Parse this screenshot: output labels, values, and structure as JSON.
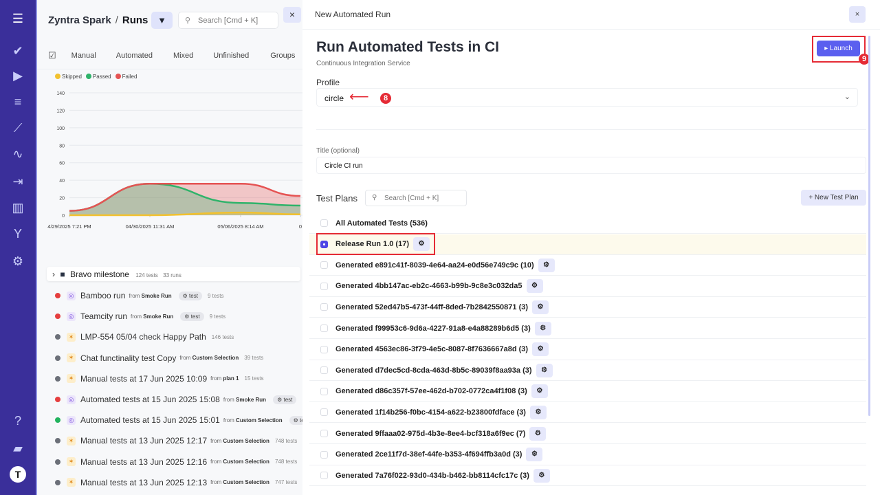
{
  "sidebar": {
    "items": [
      {
        "icon": "menu-icon",
        "glyph": "☰"
      },
      {
        "icon": "check-icon",
        "glyph": "✔"
      },
      {
        "icon": "play-circle-icon",
        "glyph": "▶"
      },
      {
        "icon": "list-check-icon",
        "glyph": "≡"
      },
      {
        "icon": "steps-icon",
        "glyph": "⟋"
      },
      {
        "icon": "pulse-icon",
        "glyph": "∿"
      },
      {
        "icon": "import-icon",
        "glyph": "⇥"
      },
      {
        "icon": "bar-chart-icon",
        "glyph": "▥"
      },
      {
        "icon": "branch-icon",
        "glyph": "Y"
      },
      {
        "icon": "gear-icon",
        "glyph": "⚙"
      }
    ],
    "bottom": [
      {
        "icon": "help-icon",
        "glyph": "?"
      },
      {
        "icon": "folder-icon",
        "glyph": "▰"
      },
      {
        "icon": "avatar-icon",
        "glyph": "T"
      }
    ]
  },
  "left": {
    "project": "Zyntra Spark",
    "separator": "/",
    "page": "Runs",
    "search_placeholder": "Search [Cmd + K]",
    "tabs": [
      "Manual",
      "Automated",
      "Mixed",
      "Unfinished",
      "Groups"
    ],
    "milestone": {
      "name": "Bravo milestone",
      "tests": "124 tests",
      "runs": "33 runs"
    },
    "runs": [
      {
        "name": "Bamboo run",
        "from": "from",
        "source": "Smoke Run",
        "tag": "test",
        "count": "9 tests",
        "status": "#e53e3e",
        "kind": "auto"
      },
      {
        "name": "Teamcity run",
        "from": "from",
        "source": "Smoke Run",
        "tag": "test",
        "count": "9 tests",
        "status": "#e53e3e",
        "kind": "auto"
      },
      {
        "name": "LMP-554 05/04 check Happy Path",
        "count": "146 tests",
        "status": "#6b6f78",
        "kind": "manual"
      },
      {
        "name": "Chat functinality test Copy",
        "from": "from",
        "source": "Custom Selection",
        "count": "39 tests",
        "status": "#6b6f78",
        "kind": "manual"
      },
      {
        "name": "Manual tests at 17 Jun 2025 10:09",
        "from": "from",
        "source": "plan 1",
        "count": "15 tests",
        "status": "#6b6f78",
        "kind": "manual"
      },
      {
        "name": "Automated tests at 15 Jun 2025 15:08",
        "from": "from",
        "source": "Smoke Run",
        "tag": "test",
        "status": "#e53e3e",
        "kind": "auto"
      },
      {
        "name": "Automated tests at 15 Jun 2025 15:01",
        "from": "from",
        "source": "Custom Selection",
        "tag": "te",
        "status": "#22b35e",
        "kind": "auto"
      },
      {
        "name": "Manual tests at 13 Jun 2025 12:17",
        "from": "from",
        "source": "Custom Selection",
        "count": "748 tests",
        "status": "#6b6f78",
        "kind": "manual"
      },
      {
        "name": "Manual tests at 13 Jun 2025 12:16",
        "from": "from",
        "source": "Custom Selection",
        "count": "748 tests",
        "status": "#6b6f78",
        "kind": "manual"
      },
      {
        "name": "Manual tests at 13 Jun 2025 12:13",
        "from": "from",
        "source": "Custom Selection",
        "count": "747 tests",
        "status": "#6b6f78",
        "kind": "manual"
      }
    ]
  },
  "chart_data": {
    "type": "area",
    "stacked": true,
    "grid": true,
    "legend": "top-left",
    "x": [
      "4/29/2025 7:21 PM",
      "04/30/2025 11:31 AM",
      "05/06/2025 8:14 AM",
      "0"
    ],
    "ylim": [
      0,
      140
    ],
    "yticks": [
      0,
      20,
      40,
      60,
      80,
      100,
      120,
      140
    ],
    "series": [
      {
        "name": "Skipped",
        "color": "#f2c12e",
        "values": [
          0,
          0,
          3,
          1
        ]
      },
      {
        "name": "Passed",
        "color": "#2fb36a",
        "values": [
          5,
          36,
          11,
          10
        ]
      },
      {
        "name": "Failed",
        "color": "#e55353",
        "values": [
          0,
          0,
          22,
          11
        ]
      }
    ]
  },
  "modal": {
    "header": "New Automated Run",
    "close": "×",
    "title": "Run Automated Tests in CI",
    "subtitle": "Continuous Integration Service",
    "launch": "Launch",
    "launch_icon": "▸",
    "profile_label": "Profile",
    "profile_value": "circle",
    "title_label": "Title (optional)",
    "title_value": "Circle CI run",
    "plans_label": "Test Plans",
    "plans_search_placeholder": "Search [Cmd + K]",
    "new_plan": "+ New Test Plan",
    "annotations": {
      "profile": "8",
      "launch": "9"
    },
    "accent": "#5b5fef",
    "plans": [
      {
        "label": "All Automated Tests (536)",
        "checked": false,
        "gear": false
      },
      {
        "label": "Release Run 1.0 (17)",
        "checked": true,
        "gear": true
      },
      {
        "label": "Generated e891c41f-8039-4e64-aa24-e0d56e749c9c (10)",
        "checked": false,
        "gear": true
      },
      {
        "label": "Generated 4bb147ac-eb2c-4663-b99b-9c8e3c032da5",
        "checked": false,
        "gear": true
      },
      {
        "label": "Generated 52ed47b5-473f-44ff-8ded-7b2842550871 (3)",
        "checked": false,
        "gear": true
      },
      {
        "label": "Generated f99953c6-9d6a-4227-91a8-e4a88289b6d5 (3)",
        "checked": false,
        "gear": true
      },
      {
        "label": "Generated 4563ec86-3f79-4e5c-8087-8f7636667a8d (3)",
        "checked": false,
        "gear": true
      },
      {
        "label": "Generated d7dec5cd-8cda-463d-8b5c-89039f8aa93a (3)",
        "checked": false,
        "gear": true
      },
      {
        "label": "Generated d86c357f-57ee-462d-b702-0772ca4f1f08 (3)",
        "checked": false,
        "gear": true
      },
      {
        "label": "Generated 1f14b256-f0bc-4154-a622-b23800fdface (3)",
        "checked": false,
        "gear": true
      },
      {
        "label": "Generated 9ffaaa02-975d-4b3e-8ee4-bcf318a6f9ec (7)",
        "checked": false,
        "gear": true
      },
      {
        "label": "Generated 2ce11f7d-38ef-44fe-b353-4f694ffb3a0d (3)",
        "checked": false,
        "gear": true
      },
      {
        "label": "Generated 7a76f022-93d0-434b-b462-bb8114cfc17c (3)",
        "checked": false,
        "gear": true
      }
    ]
  }
}
